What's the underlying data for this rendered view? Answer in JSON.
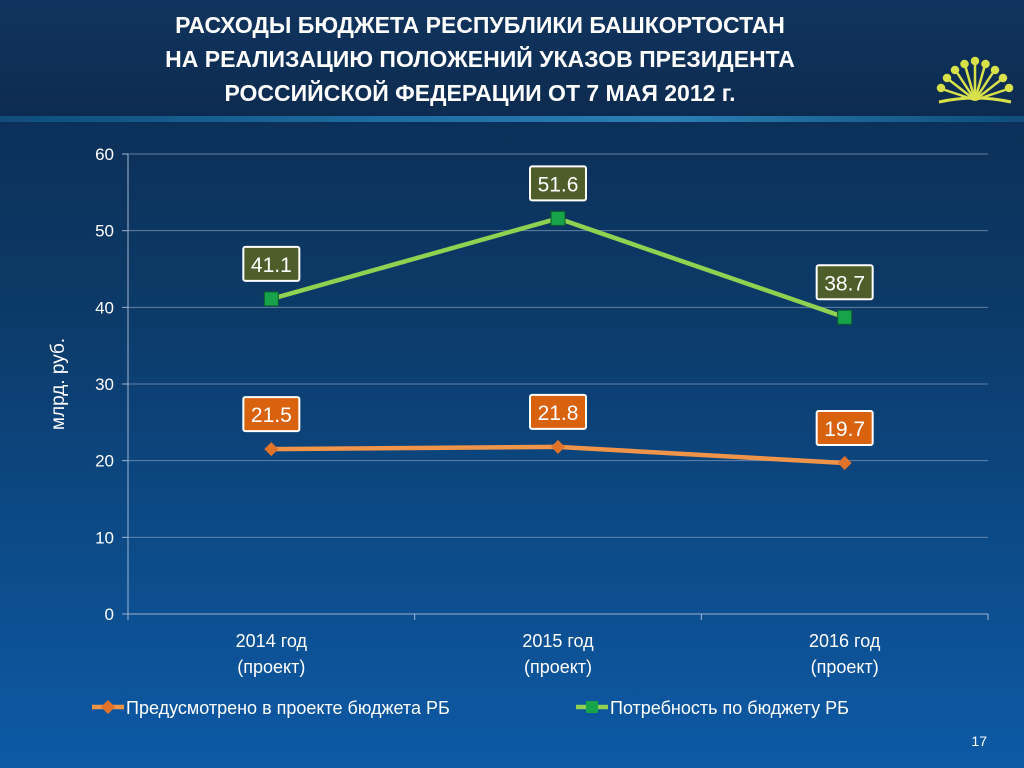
{
  "title_lines": [
    "РАСХОДЫ БЮДЖЕТА РЕСПУБЛИКИ БАШКОРТОСТАН",
    "НА РЕАЛИЗАЦИЮ ПОЛОЖЕНИЙ УКАЗОВ ПРЕЗИДЕНТА",
    "РОССИЙСКОЙ ФЕДЕРАЦИИ ОТ 7 МАЯ 2012 г."
  ],
  "page_number": "17",
  "logo_icon": "kurai-flower-icon",
  "chart_data": {
    "type": "line",
    "categories": [
      [
        "2014 год",
        "(проект)"
      ],
      [
        "2015 год",
        "(проект)"
      ],
      [
        "2016 год",
        "(проект)"
      ]
    ],
    "ylabel": "млрд. руб.",
    "ylim": [
      0,
      60
    ],
    "yticks": [
      0,
      10,
      20,
      30,
      40,
      50,
      60
    ],
    "grid": true,
    "legend_position": "bottom",
    "series": [
      {
        "name": "Предусмотрено в проекте бюджета РБ",
        "values": [
          21.5,
          21.8,
          19.7
        ],
        "labels": [
          "21.5",
          "21.8",
          "19.7"
        ],
        "color": "#f0944a",
        "marker": "diamond",
        "label_bg": "#d9620f"
      },
      {
        "name": "Потребность по бюджету РБ",
        "values": [
          41.1,
          51.6,
          38.7
        ],
        "labels": [
          "41.1",
          "51.6",
          "38.7"
        ],
        "color": "#8fd150",
        "marker": "square",
        "marker_color": "#17a34a",
        "label_bg": "#4e5e2a"
      }
    ]
  }
}
